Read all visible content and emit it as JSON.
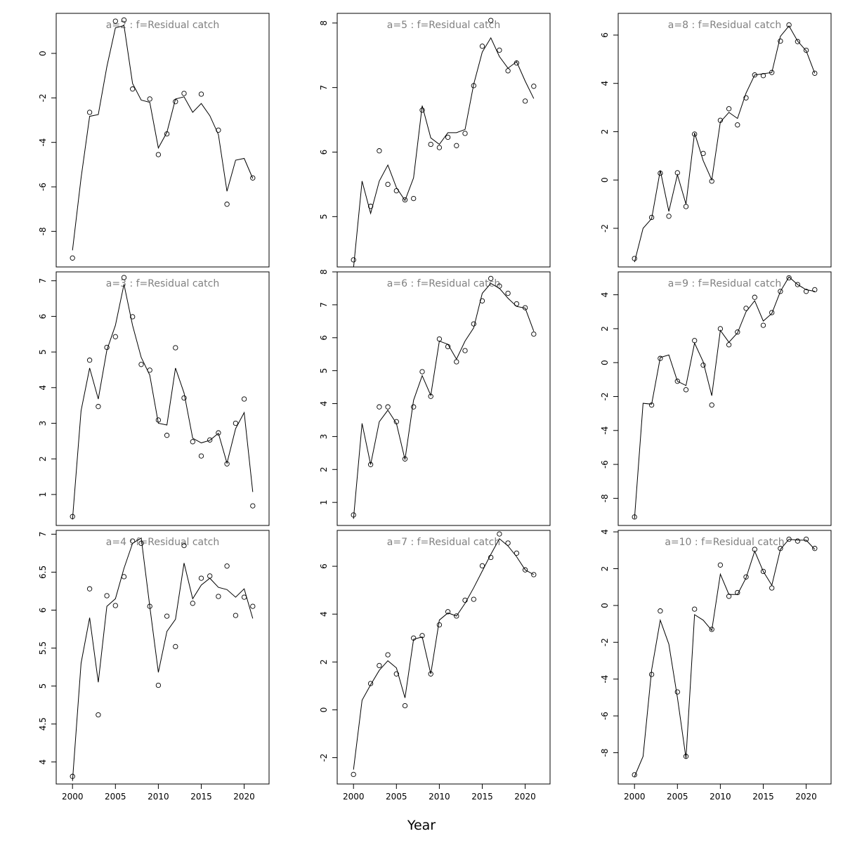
{
  "xlabel": "Year",
  "chart_data": [
    {
      "type": "line",
      "title": "a=2 : f=Residual catch",
      "ylim": [
        -9.6,
        1.8
      ],
      "yticks": [
        -8,
        -6,
        -4,
        -2,
        0
      ],
      "x_obs": [
        2000,
        2002,
        2005,
        2006,
        2007,
        2009,
        2010,
        2011,
        2012,
        2013,
        2015,
        2017,
        2018,
        2021
      ],
      "y_obs": [
        -9.2,
        -2.65,
        1.45,
        1.5,
        -1.6,
        -2.05,
        -4.55,
        -3.62,
        -2.17,
        -1.8,
        -1.83,
        -3.45,
        -6.78,
        -5.6
      ],
      "x_fit": [
        2000,
        2001,
        2002,
        2003,
        2004,
        2005,
        2006,
        2007,
        2008,
        2009,
        2010,
        2011,
        2012,
        2013,
        2014,
        2015,
        2016,
        2017,
        2018,
        2019,
        2020,
        2021
      ],
      "y_fit": [
        -8.85,
        -5.6,
        -2.83,
        -2.75,
        -0.6,
        1.15,
        1.25,
        -1.35,
        -2.1,
        -2.2,
        -4.25,
        -3.55,
        -2.05,
        -1.95,
        -2.65,
        -2.25,
        -2.8,
        -3.65,
        -6.2,
        -4.8,
        -4.72,
        -5.62
      ]
    },
    {
      "type": "line",
      "title": "a=5 : f=Residual catch",
      "ylim": [
        4.22,
        8.15
      ],
      "yticks": [
        5,
        6,
        7,
        8
      ],
      "x_obs": [
        2000,
        2002,
        2003,
        2004,
        2005,
        2006,
        2007,
        2008,
        2009,
        2010,
        2011,
        2012,
        2013,
        2014,
        2015,
        2016,
        2017,
        2018,
        2019,
        2020,
        2021
      ],
      "y_obs": [
        4.33,
        5.16,
        6.02,
        5.5,
        5.4,
        5.26,
        5.28,
        6.65,
        6.12,
        6.07,
        6.23,
        6.1,
        6.29,
        7.03,
        7.64,
        8.04,
        7.58,
        7.26,
        7.38,
        6.79,
        7.02
      ],
      "x_fit": [
        2000,
        2001,
        2002,
        2003,
        2004,
        2005,
        2006,
        2007,
        2008,
        2009,
        2010,
        2011,
        2012,
        2013,
        2014,
        2015,
        2016,
        2017,
        2018,
        2019,
        2020,
        2021
      ],
      "y_fit": [
        4.2,
        5.55,
        5.05,
        5.55,
        5.8,
        5.45,
        5.25,
        5.6,
        6.72,
        6.22,
        6.12,
        6.3,
        6.3,
        6.35,
        7.05,
        7.55,
        7.77,
        7.48,
        7.3,
        7.4,
        7.1,
        6.83
      ]
    },
    {
      "type": "line",
      "title": "a=8 : f=Residual catch",
      "ylim": [
        -3.6,
        6.9
      ],
      "yticks": [
        -2,
        0,
        2,
        4,
        6
      ],
      "x_obs": [
        2000,
        2002,
        2003,
        2004,
        2005,
        2006,
        2007,
        2008,
        2009,
        2010,
        2011,
        2012,
        2013,
        2014,
        2015,
        2016,
        2017,
        2018,
        2019,
        2020,
        2021
      ],
      "y_obs": [
        -3.25,
        -1.55,
        0.28,
        -1.5,
        0.3,
        -1.1,
        1.9,
        1.1,
        -0.05,
        2.47,
        2.95,
        2.28,
        3.4,
        4.35,
        4.32,
        4.45,
        5.75,
        6.42,
        5.73,
        5.37,
        4.42
      ],
      "x_fit": [
        2000,
        2001,
        2002,
        2003,
        2004,
        2005,
        2006,
        2007,
        2008,
        2009,
        2010,
        2011,
        2012,
        2013,
        2014,
        2015,
        2016,
        2017,
        2018,
        2019,
        2020,
        2021
      ],
      "y_fit": [
        -3.4,
        -2,
        -1.6,
        0.4,
        -1.3,
        0.22,
        -1,
        1.95,
        0.8,
        0,
        2.4,
        2.8,
        2.55,
        3.6,
        4.35,
        4.4,
        4.45,
        5.95,
        6.38,
        5.75,
        5.35,
        4.42
      ]
    },
    {
      "type": "line",
      "title": "a=3 : f=Residual catch",
      "ylim": [
        0.13,
        7.25
      ],
      "yticks": [
        1,
        2,
        3,
        4,
        5,
        6,
        7
      ],
      "x_obs": [
        2000,
        2002,
        2003,
        2004,
        2005,
        2006,
        2007,
        2008,
        2009,
        2010,
        2011,
        2012,
        2013,
        2014,
        2015,
        2016,
        2017,
        2018,
        2019,
        2020,
        2021
      ],
      "y_obs": [
        0.38,
        4.77,
        3.47,
        5.13,
        5.43,
        7.09,
        5.99,
        4.65,
        4.49,
        3.09,
        2.66,
        5.12,
        3.71,
        2.48,
        2.08,
        2.53,
        2.73,
        1.86,
        3.0,
        3.68,
        0.68
      ],
      "x_fit": [
        2000,
        2001,
        2002,
        2003,
        2004,
        2005,
        2006,
        2007,
        2008,
        2009,
        2010,
        2011,
        2012,
        2013,
        2014,
        2015,
        2016,
        2017,
        2018,
        2019,
        2020,
        2021
      ],
      "y_fit": [
        0.3,
        3.35,
        4.55,
        3.68,
        5.05,
        5.75,
        6.9,
        5.75,
        4.85,
        4.35,
        3.0,
        2.95,
        4.55,
        3.85,
        2.58,
        2.45,
        2.52,
        2.72,
        1.88,
        2.85,
        3.3,
        1.07
      ]
    },
    {
      "type": "line",
      "title": "a=6 : f=Residual catch",
      "ylim": [
        0.3,
        8.0
      ],
      "yticks": [
        1,
        2,
        3,
        4,
        5,
        6,
        7,
        8
      ],
      "x_obs": [
        2000,
        2002,
        2003,
        2004,
        2005,
        2006,
        2007,
        2008,
        2009,
        2010,
        2011,
        2012,
        2013,
        2014,
        2015,
        2016,
        2017,
        2018,
        2019,
        2020,
        2021
      ],
      "y_obs": [
        0.62,
        2.15,
        3.9,
        3.9,
        3.45,
        2.32,
        3.9,
        4.97,
        4.22,
        5.96,
        5.73,
        5.27,
        5.61,
        6.42,
        7.12,
        7.8,
        7.57,
        7.35,
        7.03,
        6.91,
        6.11
      ],
      "x_fit": [
        2000,
        2001,
        2002,
        2003,
        2004,
        2005,
        2006,
        2007,
        2008,
        2009,
        2010,
        2011,
        2012,
        2013,
        2014,
        2015,
        2016,
        2017,
        2018,
        2019,
        2020,
        2021
      ],
      "y_fit": [
        0.5,
        3.4,
        2.15,
        3.45,
        3.8,
        3.4,
        2.3,
        4.1,
        4.85,
        4.25,
        5.9,
        5.8,
        5.35,
        5.9,
        6.3,
        7.35,
        7.65,
        7.5,
        7.2,
        6.95,
        6.9,
        6.2
      ]
    },
    {
      "type": "line",
      "title": "a=9 : f=Residual catch",
      "ylim": [
        -9.6,
        5.35
      ],
      "yticks": [
        -8,
        -6,
        -4,
        -2,
        0,
        2,
        4
      ],
      "x_obs": [
        2000,
        2002,
        2003,
        2005,
        2006,
        2007,
        2008,
        2009,
        2010,
        2011,
        2012,
        2013,
        2014,
        2015,
        2016,
        2017,
        2018,
        2019,
        2020,
        2021
      ],
      "y_obs": [
        -9.1,
        -2.5,
        0.25,
        -1.1,
        -1.6,
        1.3,
        -0.15,
        -2.5,
        2.0,
        1.05,
        1.8,
        3.2,
        3.85,
        2.2,
        2.95,
        4.2,
        5.0,
        4.6,
        4.2,
        4.3
      ],
      "x_fit": [
        2000,
        2001,
        2002,
        2003,
        2004,
        2005,
        2006,
        2007,
        2008,
        2009,
        2010,
        2011,
        2012,
        2013,
        2014,
        2015,
        2016,
        2017,
        2018,
        2019,
        2020,
        2021
      ],
      "y_fit": [
        -9.2,
        -2.4,
        -2.45,
        0.3,
        0.45,
        -1.1,
        -1.35,
        1.15,
        0.05,
        -1.95,
        1.9,
        1.2,
        1.75,
        3.0,
        3.65,
        2.45,
        2.9,
        4.2,
        5.05,
        4.6,
        4.3,
        4.2
      ]
    },
    {
      "type": "line",
      "title": "a=4 : f=Residual catch",
      "ylim": [
        3.71,
        7.05
      ],
      "yticks": [
        4.0,
        4.5,
        5.0,
        5.5,
        6.0,
        6.5,
        7.0
      ],
      "x_obs": [
        2000,
        2002,
        2003,
        2004,
        2005,
        2006,
        2007,
        2008,
        2009,
        2010,
        2011,
        2012,
        2013,
        2014,
        2015,
        2016,
        2017,
        2018,
        2019,
        2020,
        2021
      ],
      "y_obs": [
        3.81,
        6.28,
        4.62,
        6.19,
        6.06,
        6.44,
        6.91,
        6.88,
        6.05,
        5.01,
        5.92,
        5.52,
        6.85,
        6.09,
        6.42,
        6.45,
        6.18,
        6.58,
        5.93,
        6.17,
        6.05
      ],
      "x_fit": [
        2000,
        2001,
        2002,
        2003,
        2004,
        2005,
        2006,
        2007,
        2008,
        2009,
        2010,
        2011,
        2012,
        2013,
        2014,
        2015,
        2016,
        2017,
        2018,
        2019,
        2020,
        2021
      ],
      "y_fit": [
        3.75,
        5.3,
        5.9,
        5.05,
        6.05,
        6.15,
        6.55,
        6.88,
        6.95,
        6.05,
        5.18,
        5.72,
        5.88,
        6.62,
        6.15,
        6.33,
        6.42,
        6.3,
        6.27,
        6.17,
        6.28,
        5.89
      ]
    },
    {
      "type": "line",
      "title": "a=7 : f=Residual catch",
      "ylim": [
        -3.1,
        7.5
      ],
      "yticks": [
        -2,
        0,
        2,
        4,
        6
      ],
      "x_obs": [
        2000,
        2002,
        2003,
        2004,
        2005,
        2006,
        2007,
        2008,
        2009,
        2010,
        2011,
        2012,
        2013,
        2014,
        2015,
        2016,
        2017,
        2018,
        2019,
        2020,
        2021
      ],
      "y_obs": [
        -2.7,
        1.1,
        1.85,
        2.3,
        1.5,
        0.17,
        3.0,
        3.1,
        1.5,
        3.55,
        4.1,
        3.92,
        4.58,
        4.62,
        6.02,
        6.37,
        7.35,
        6.97,
        6.55,
        5.85,
        5.65
      ],
      "x_fit": [
        2000,
        2001,
        2002,
        2003,
        2004,
        2005,
        2006,
        2007,
        2008,
        2009,
        2010,
        2011,
        2012,
        2013,
        2014,
        2015,
        2016,
        2017,
        2018,
        2019,
        2020,
        2021
      ],
      "y_fit": [
        -2.5,
        0.4,
        1.05,
        1.65,
        2.05,
        1.75,
        0.5,
        2.95,
        3.05,
        1.5,
        3.75,
        4.05,
        3.92,
        4.45,
        5.1,
        5.8,
        6.5,
        7.15,
        6.85,
        6.4,
        5.85,
        5.65
      ]
    },
    {
      "type": "line",
      "title": "a=10 : f=Residual catch",
      "ylim": [
        -9.7,
        4.08
      ],
      "yticks": [
        -8,
        -6,
        -4,
        -2,
        0,
        2,
        4
      ],
      "x_obs": [
        2000,
        2002,
        2003,
        2005,
        2006,
        2007,
        2009,
        2010,
        2011,
        2012,
        2013,
        2014,
        2015,
        2016,
        2017,
        2018,
        2019,
        2020,
        2021
      ],
      "y_obs": [
        -9.2,
        -3.75,
        -0.3,
        -4.7,
        -8.2,
        -0.2,
        -1.3,
        2.2,
        0.5,
        0.7,
        1.55,
        3.05,
        1.85,
        0.95,
        3.1,
        3.6,
        3.5,
        3.6,
        3.1
      ],
      "x_fit": [
        2000,
        2001,
        2002,
        2003,
        2004,
        2005,
        2006,
        2007,
        2008,
        2009,
        2010,
        2011,
        2012,
        2013,
        2014,
        2015,
        2016,
        2017,
        2018,
        2019,
        2020,
        2021
      ],
      "y_fit": [
        -9.3,
        -8.2,
        -3.5,
        -0.8,
        -2.1,
        -5.0,
        -8.3,
        -0.5,
        -0.8,
        -1.35,
        1.7,
        0.6,
        0.6,
        1.5,
        2.95,
        1.85,
        1.1,
        3.05,
        3.6,
        3.55,
        3.55,
        3.05
      ]
    }
  ]
}
